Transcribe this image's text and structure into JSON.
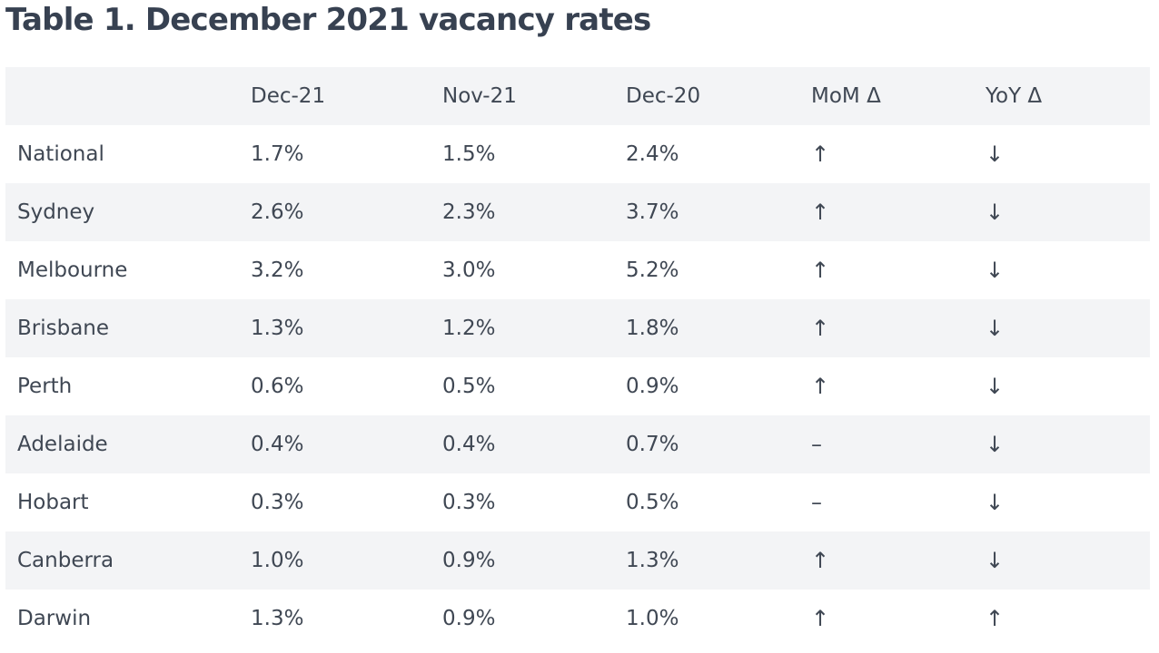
{
  "title": "Table 1. December 2021 vacancy rates",
  "table": {
    "headers": [
      "",
      "Dec-21",
      "Nov-21",
      "Dec-20",
      "MoM Δ",
      "YoY Δ"
    ],
    "rows": [
      {
        "city": "National",
        "dec21": "1.7%",
        "nov21": "1.5%",
        "dec20": "2.4%",
        "mom": "↑",
        "yoy": "↓"
      },
      {
        "city": "Sydney",
        "dec21": "2.6%",
        "nov21": "2.3%",
        "dec20": "3.7%",
        "mom": "↑",
        "yoy": "↓"
      },
      {
        "city": "Melbourne",
        "dec21": "3.2%",
        "nov21": "3.0%",
        "dec20": "5.2%",
        "mom": "↑",
        "yoy": "↓"
      },
      {
        "city": "Brisbane",
        "dec21": "1.3%",
        "nov21": "1.2%",
        "dec20": "1.8%",
        "mom": "↑",
        "yoy": "↓"
      },
      {
        "city": "Perth",
        "dec21": "0.6%",
        "nov21": "0.5%",
        "dec20": "0.9%",
        "mom": "↑",
        "yoy": "↓"
      },
      {
        "city": "Adelaide",
        "dec21": "0.4%",
        "nov21": "0.4%",
        "dec20": "0.7%",
        "mom": "–",
        "yoy": "↓"
      },
      {
        "city": "Hobart",
        "dec21": "0.3%",
        "nov21": "0.3%",
        "dec20": "0.5%",
        "mom": "–",
        "yoy": "↓"
      },
      {
        "city": "Canberra",
        "dec21": "1.0%",
        "nov21": "0.9%",
        "dec20": "1.3%",
        "mom": "↑",
        "yoy": "↓"
      },
      {
        "city": "Darwin",
        "dec21": "1.3%",
        "nov21": "0.9%",
        "dec20": "1.0%",
        "mom": "↑",
        "yoy": "↑"
      }
    ]
  },
  "colors": {
    "text": "#3f4753",
    "title": "#374151",
    "shaded_row": "#f3f4f6"
  }
}
